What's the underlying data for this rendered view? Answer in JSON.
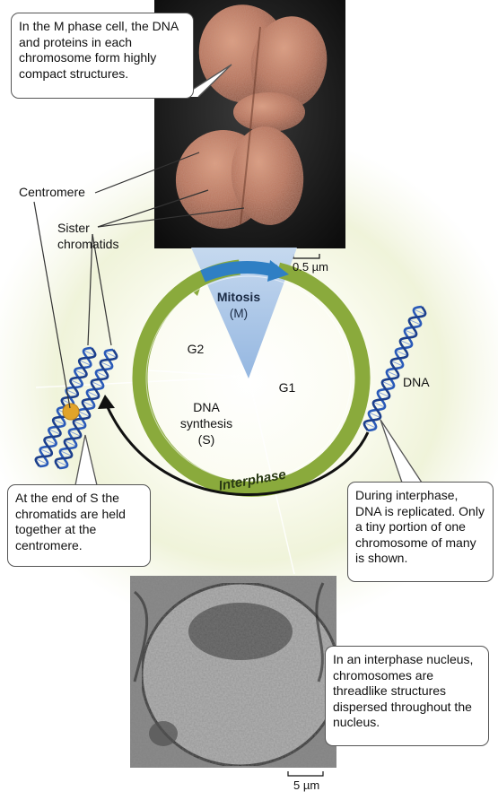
{
  "callouts": {
    "m_phase": "In the M phase cell, the DNA and proteins in each chromosome form highly compact structures.",
    "end_of_s": "At the end of S the chromatids are held together at the centromere.",
    "interphase_dna": "During interphase, DNA is replicated. Only a tiny portion of one chromosome of many is shown.",
    "interphase_nucleus": "In an interphase nucleus, chromosomes are threadlike structures dispersed throughout the nucleus."
  },
  "labels": {
    "centromere": "Centromere",
    "sister_line1": "Sister",
    "sister_line2": "chromatids",
    "dna": "DNA"
  },
  "cycle": {
    "mitosis": "Mitosis",
    "mitosis_abbr": "(M)",
    "g2": "G2",
    "g1": "G1",
    "s_line1": "DNA",
    "s_line2": "synthesis",
    "s_line3": "(S)",
    "interphase": "Interphase"
  },
  "scale_bars": {
    "top": "0.5 µm",
    "bottom": "5 µm"
  },
  "colors": {
    "ring_green": "#8aaa3c",
    "mitosis_blue": "#2f7fc4",
    "wedge_light_blue": "#a9c6e8",
    "chromosome_base": "#b8735a",
    "dna_blue": "#2a5ab8",
    "centromere_orange": "#e2a42a"
  }
}
